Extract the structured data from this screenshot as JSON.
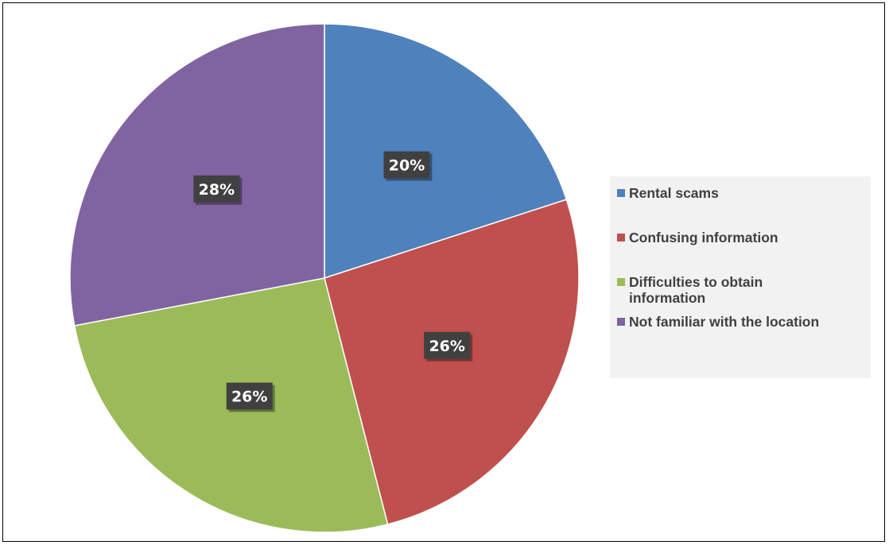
{
  "chart_data": {
    "type": "pie",
    "title": "",
    "categories": [
      "Rental scams",
      "Confusing information",
      "Difficulties to obtain information",
      "Not familiar with the location"
    ],
    "values": [
      20,
      26,
      26,
      28
    ],
    "labels": [
      "20%",
      "26%",
      "26%",
      "28%"
    ],
    "colors": [
      "#4f81bd",
      "#c0504d",
      "#9bbb59",
      "#8064a2"
    ],
    "start_angle_deg": 0,
    "direction": "clockwise",
    "legend_position": "right"
  }
}
